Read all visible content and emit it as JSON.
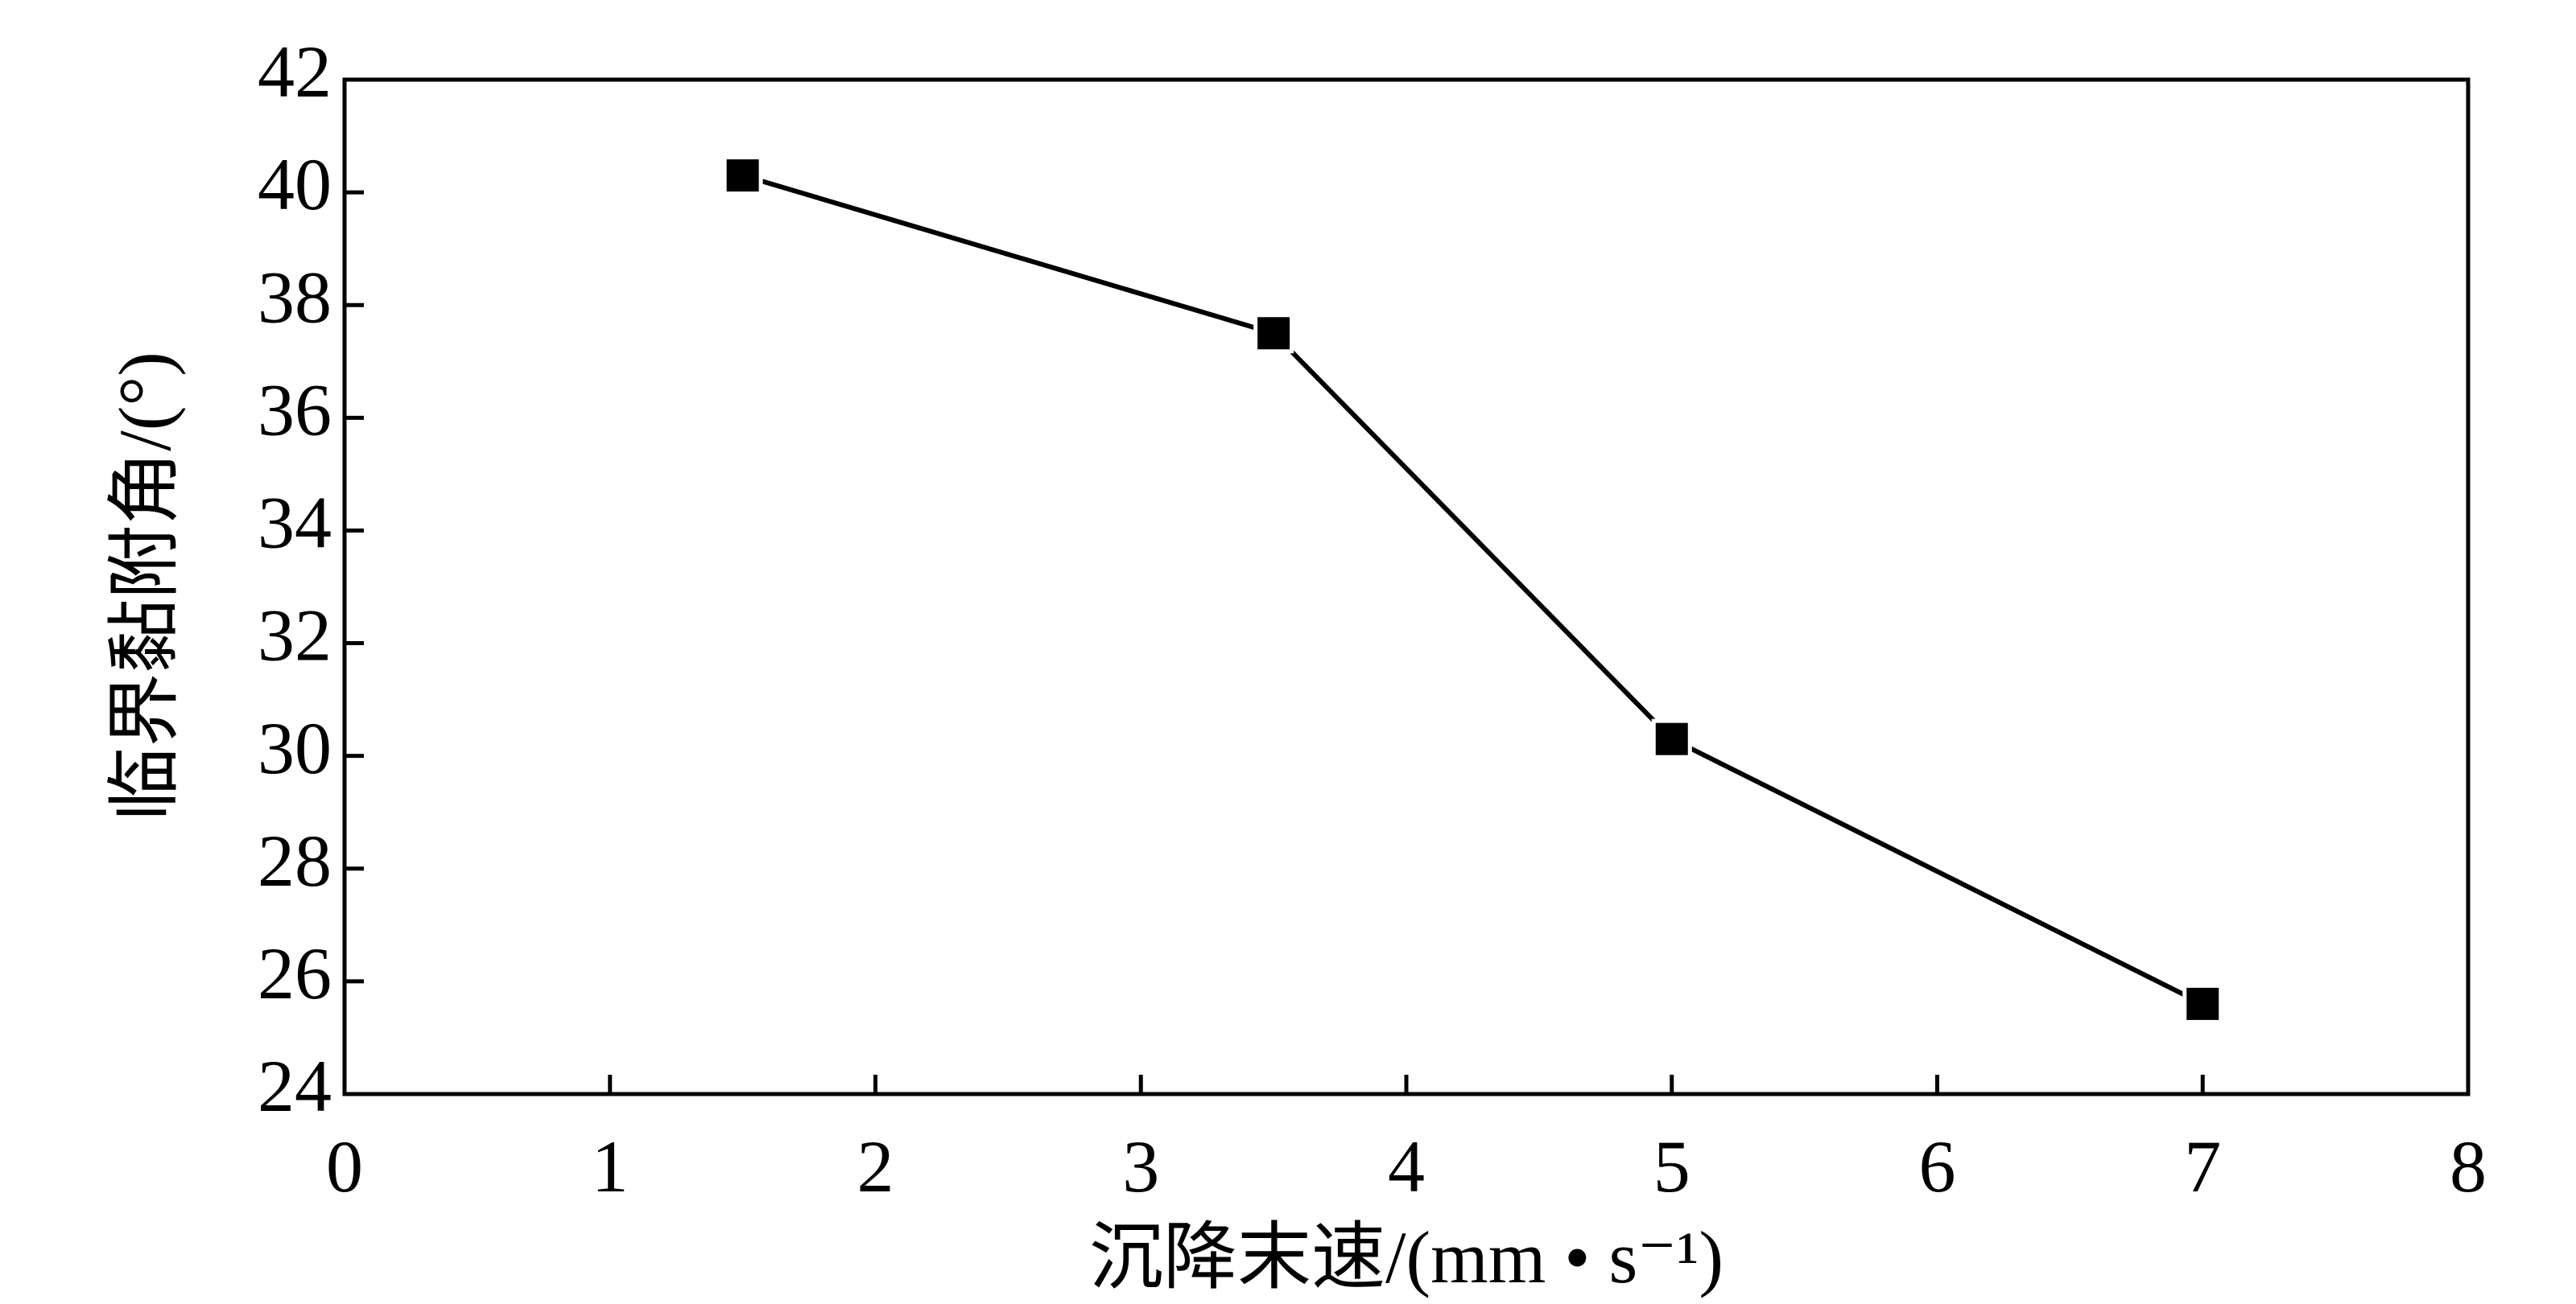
{
  "chart_data": {
    "type": "line",
    "x_label": "沉降末速/(mm • s⁻¹)",
    "y_label": "临界黏附角/(°)",
    "x": [
      1.5,
      3.5,
      5,
      7
    ],
    "series": [
      {
        "color": "#000000",
        "values": [
          40.3,
          37.5,
          30.3,
          25.6
        ]
      }
    ],
    "xlim": [
      0,
      8
    ],
    "xticks": [
      0,
      1,
      2,
      3,
      4,
      5,
      6,
      7,
      8
    ],
    "ylim": [
      24,
      42
    ],
    "yticks": [
      24,
      26,
      28,
      30,
      32,
      34,
      36,
      38,
      40,
      42
    ],
    "grid": false,
    "marker": "square"
  }
}
